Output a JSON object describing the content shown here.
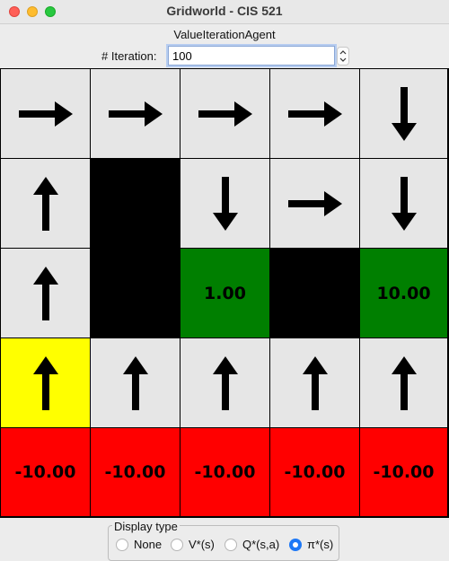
{
  "window": {
    "title": "Gridworld - CIS 521"
  },
  "agent": {
    "name": "ValueIterationAgent"
  },
  "iteration": {
    "label": "# Iteration:",
    "value": "100"
  },
  "grid": {
    "rows": [
      [
        {
          "type": "arrow",
          "dir": "right",
          "color": "#e6e6e6"
        },
        {
          "type": "arrow",
          "dir": "right",
          "color": "#e6e6e6"
        },
        {
          "type": "arrow",
          "dir": "right",
          "color": "#e6e6e6"
        },
        {
          "type": "arrow",
          "dir": "right",
          "color": "#e6e6e6"
        },
        {
          "type": "arrow",
          "dir": "down",
          "color": "#e6e6e6"
        }
      ],
      [
        {
          "type": "arrow",
          "dir": "up",
          "color": "#e6e6e6"
        },
        {
          "type": "wall",
          "color": "#000000"
        },
        {
          "type": "arrow",
          "dir": "down",
          "color": "#e6e6e6"
        },
        {
          "type": "arrow",
          "dir": "right",
          "color": "#e6e6e6"
        },
        {
          "type": "arrow",
          "dir": "down",
          "color": "#e6e6e6"
        }
      ],
      [
        {
          "type": "arrow",
          "dir": "up",
          "color": "#e6e6e6"
        },
        {
          "type": "wall",
          "color": "#000000"
        },
        {
          "type": "value",
          "value": "1.00",
          "color": "#007f00"
        },
        {
          "type": "wall",
          "color": "#000000"
        },
        {
          "type": "value",
          "value": "10.00",
          "color": "#007f00"
        }
      ],
      [
        {
          "type": "arrow",
          "dir": "up",
          "color": "#ffff00"
        },
        {
          "type": "arrow",
          "dir": "up",
          "color": "#e6e6e6"
        },
        {
          "type": "arrow",
          "dir": "up",
          "color": "#e6e6e6"
        },
        {
          "type": "arrow",
          "dir": "up",
          "color": "#e6e6e6"
        },
        {
          "type": "arrow",
          "dir": "up",
          "color": "#e6e6e6"
        }
      ],
      [
        {
          "type": "value",
          "value": "-10.00",
          "color": "#ff0000"
        },
        {
          "type": "value",
          "value": "-10.00",
          "color": "#ff0000"
        },
        {
          "type": "value",
          "value": "-10.00",
          "color": "#ff0000"
        },
        {
          "type": "value",
          "value": "-10.00",
          "color": "#ff0000"
        },
        {
          "type": "value",
          "value": "-10.00",
          "color": "#ff0000"
        }
      ]
    ]
  },
  "display_type": {
    "legend": "Display type",
    "options": [
      {
        "label": "None",
        "selected": false
      },
      {
        "label": "V*(s)",
        "selected": false
      },
      {
        "label": "Q*(s,a)",
        "selected": false
      },
      {
        "label": "π*(s)",
        "selected": true
      }
    ]
  }
}
